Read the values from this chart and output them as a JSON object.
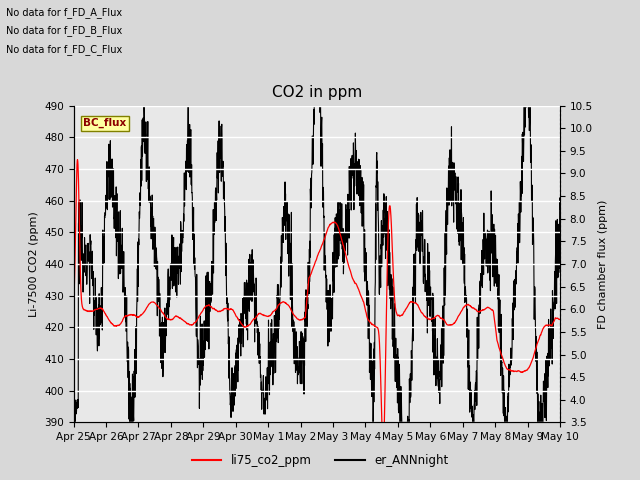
{
  "title": "CO2 in ppm",
  "ylabel_left": "Li-7500 CO2 (ppm)",
  "ylabel_right": "FD chamber flux (ppm)",
  "ylim_left": [
    390,
    490
  ],
  "ylim_right": [
    3.5,
    10.5
  ],
  "yticks_left": [
    390,
    400,
    410,
    420,
    430,
    440,
    450,
    460,
    470,
    480,
    490
  ],
  "yticks_right": [
    3.5,
    4.0,
    4.5,
    5.0,
    5.5,
    6.0,
    6.5,
    7.0,
    7.5,
    8.0,
    8.5,
    9.0,
    9.5,
    10.0,
    10.5
  ],
  "xtick_labels": [
    "Apr 25",
    "Apr 26",
    "Apr 27",
    "Apr 28",
    "Apr 29",
    "Apr 30",
    "May 1",
    "May 2",
    "May 3",
    "May 4",
    "May 5",
    "May 6",
    "May 7",
    "May 8",
    "May 9",
    "May 10"
  ],
  "legend_labels": [
    "li75_co2_ppm",
    "er_ANNnight"
  ],
  "no_data_texts": [
    "No data for f_FD_A_Flux",
    "No data for f_FD_B_Flux",
    "No data for f_FD_C_Flux"
  ],
  "bc_flux_label": "BC_flux",
  "background_color": "#d8d8d8",
  "plot_bg_color": "#e8e8e8",
  "title_fontsize": 11,
  "axis_label_fontsize": 8,
  "tick_fontsize": 7.5
}
